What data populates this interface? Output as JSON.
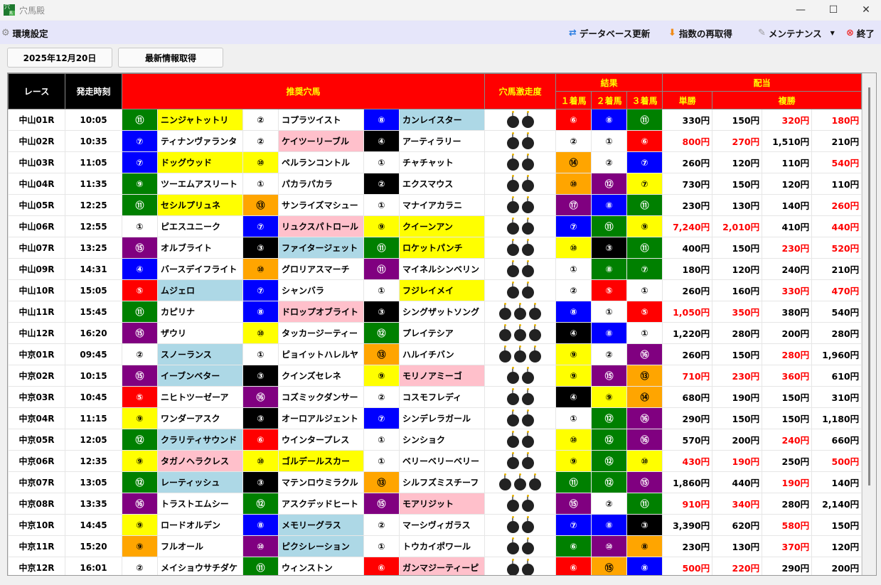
{
  "window": {
    "title": "穴馬殿",
    "min": "—",
    "max": "☐",
    "close": "✕"
  },
  "menu": {
    "settings": "環境設定",
    "db_update": "データベース更新",
    "reindex": "指数の再取得",
    "maintenance": "メンテナンス",
    "quit": "終了"
  },
  "toolbar": {
    "date": "2025年12月20日",
    "fetch": "最新情報取得"
  },
  "headers": {
    "race": "レース",
    "time": "発走時刻",
    "picks": "推奨穴馬",
    "rating": "穴馬激走度",
    "result": "結果",
    "first": "１着馬",
    "second": "２着馬",
    "third": "３着馬",
    "payout": "配当",
    "win": "単勝",
    "place": "複勝"
  },
  "colors": {
    "W": "#ffffff",
    "G": "#008000",
    "B": "#0000ff",
    "K": "#000000",
    "Y": "#ffff00",
    "O": "#ffa500",
    "P": "#800080",
    "R": "#ff0000",
    "L": "#add8e6",
    "N": "#ffc0cb",
    "hot": "#ff0000"
  },
  "rows": [
    {
      "race": "中山01R",
      "time": "10:05",
      "picks": [
        [
          "⑪",
          "G",
          "ニンジャトットリ",
          "Y"
        ],
        [
          "②",
          "W",
          "コプラツイスト",
          "W"
        ],
        [
          "⑧",
          "B",
          "カンレイスター",
          "L"
        ]
      ],
      "bombs": 2,
      "result": [
        [
          "⑥",
          "R"
        ],
        [
          "⑧",
          "B"
        ],
        [
          "⑪",
          "G"
        ]
      ],
      "pay": [
        "330円",
        "150円",
        "320円",
        "180円"
      ],
      "hot": [
        0,
        0,
        1,
        1
      ]
    },
    {
      "race": "中山02R",
      "time": "10:35",
      "picks": [
        [
          "⑦",
          "B",
          "ティナンヴァランタ",
          "W"
        ],
        [
          "②",
          "W",
          "ケイツーリーブル",
          "N"
        ],
        [
          "④",
          "K",
          "アーティラリー",
          "W"
        ]
      ],
      "bombs": 2,
      "result": [
        [
          "②",
          "W"
        ],
        [
          "①",
          "W"
        ],
        [
          "⑥",
          "R"
        ]
      ],
      "pay": [
        "800円",
        "270円",
        "1,510円",
        "210円"
      ],
      "hot": [
        1,
        1,
        0,
        0
      ]
    },
    {
      "race": "中山03R",
      "time": "11:05",
      "picks": [
        [
          "⑦",
          "B",
          "ドッグウッド",
          "Y"
        ],
        [
          "⑩",
          "Y",
          "ペルランコントル",
          "W"
        ],
        [
          "①",
          "W",
          "チャチャット",
          "W"
        ]
      ],
      "bombs": 2,
      "result": [
        [
          "⑭",
          "O"
        ],
        [
          "②",
          "W"
        ],
        [
          "⑦",
          "B"
        ]
      ],
      "pay": [
        "260円",
        "120円",
        "110円",
        "540円"
      ],
      "hot": [
        0,
        0,
        0,
        1
      ]
    },
    {
      "race": "中山04R",
      "time": "11:35",
      "picks": [
        [
          "⑨",
          "G",
          "ツーエムアスリート",
          "W"
        ],
        [
          "①",
          "W",
          "パカラパカラ",
          "W"
        ],
        [
          "②",
          "K",
          "エクスマウス",
          "W"
        ]
      ],
      "bombs": 2,
      "result": [
        [
          "⑩",
          "O"
        ],
        [
          "⑫",
          "P"
        ],
        [
          "⑦",
          "Y"
        ]
      ],
      "pay": [
        "730円",
        "150円",
        "120円",
        "110円"
      ],
      "hot": [
        0,
        0,
        0,
        0
      ]
    },
    {
      "race": "中山05R",
      "time": "12:25",
      "picks": [
        [
          "⑪",
          "G",
          "セシルプリュネ",
          "Y"
        ],
        [
          "⑬",
          "O",
          "サンライズマシュー",
          "W"
        ],
        [
          "①",
          "W",
          "マナイアカラニ",
          "W"
        ]
      ],
      "bombs": 2,
      "result": [
        [
          "⑰",
          "P"
        ],
        [
          "⑧",
          "B"
        ],
        [
          "⑪",
          "G"
        ]
      ],
      "pay": [
        "230円",
        "130円",
        "140円",
        "260円"
      ],
      "hot": [
        0,
        0,
        0,
        1
      ]
    },
    {
      "race": "中山06R",
      "time": "12:55",
      "picks": [
        [
          "①",
          "W",
          "ピエスユニーク",
          "W"
        ],
        [
          "⑦",
          "B",
          "リュクスパトロール",
          "N"
        ],
        [
          "⑨",
          "Y",
          "クイーンアン",
          "Y"
        ]
      ],
      "bombs": 2,
      "result": [
        [
          "⑦",
          "B"
        ],
        [
          "⑪",
          "G"
        ],
        [
          "⑨",
          "Y"
        ]
      ],
      "pay": [
        "7,240円",
        "2,010円",
        "410円",
        "440円"
      ],
      "hot": [
        1,
        1,
        0,
        1
      ]
    },
    {
      "race": "中山07R",
      "time": "13:25",
      "picks": [
        [
          "⑮",
          "P",
          "オルブライト",
          "W"
        ],
        [
          "③",
          "K",
          "ファイタージェット",
          "L"
        ],
        [
          "⑪",
          "G",
          "ロケットパンチ",
          "Y"
        ]
      ],
      "bombs": 2,
      "result": [
        [
          "⑩",
          "Y"
        ],
        [
          "③",
          "K"
        ],
        [
          "⑪",
          "G"
        ]
      ],
      "pay": [
        "400円",
        "150円",
        "230円",
        "520円"
      ],
      "hot": [
        0,
        0,
        1,
        1
      ]
    },
    {
      "race": "中山09R",
      "time": "14:31",
      "picks": [
        [
          "④",
          "B",
          "バースデイフライト",
          "W"
        ],
        [
          "⑩",
          "O",
          "グロリアスマーチ",
          "W"
        ],
        [
          "⑪",
          "P",
          "マイネルシンベリン",
          "W"
        ]
      ],
      "bombs": 2,
      "result": [
        [
          "①",
          "W"
        ],
        [
          "⑧",
          "G"
        ],
        [
          "⑦",
          "G"
        ]
      ],
      "pay": [
        "180円",
        "120円",
        "240円",
        "210円"
      ],
      "hot": [
        0,
        0,
        0,
        0
      ]
    },
    {
      "race": "中山10R",
      "time": "15:05",
      "picks": [
        [
          "⑤",
          "R",
          "ムジェロ",
          "L"
        ],
        [
          "⑦",
          "B",
          "シャンバラ",
          "W"
        ],
        [
          "①",
          "W",
          "フジレイメイ",
          "Y"
        ]
      ],
      "bombs": 2,
      "result": [
        [
          "②",
          "W"
        ],
        [
          "⑤",
          "R"
        ],
        [
          "①",
          "W"
        ]
      ],
      "pay": [
        "260円",
        "160円",
        "330円",
        "470円"
      ],
      "hot": [
        0,
        0,
        1,
        1
      ]
    },
    {
      "race": "中山11R",
      "time": "15:45",
      "picks": [
        [
          "⑪",
          "G",
          "カピリナ",
          "W"
        ],
        [
          "⑧",
          "B",
          "ドロップオブライト",
          "N"
        ],
        [
          "③",
          "K",
          "シングザットソング",
          "W"
        ]
      ],
      "bombs": 3,
      "result": [
        [
          "⑧",
          "B"
        ],
        [
          "①",
          "W"
        ],
        [
          "⑤",
          "R"
        ]
      ],
      "pay": [
        "1,050円",
        "350円",
        "380円",
        "540円"
      ],
      "hot": [
        1,
        1,
        0,
        0
      ]
    },
    {
      "race": "中山12R",
      "time": "16:20",
      "picks": [
        [
          "⑮",
          "P",
          "ザウリ",
          "W"
        ],
        [
          "⑩",
          "Y",
          "タッカージーティー",
          "W"
        ],
        [
          "⑫",
          "G",
          "プレイテシア",
          "W"
        ]
      ],
      "bombs": 3,
      "result": [
        [
          "④",
          "K"
        ],
        [
          "⑧",
          "B"
        ],
        [
          "①",
          "W"
        ]
      ],
      "pay": [
        "1,220円",
        "280円",
        "200円",
        "280円"
      ],
      "hot": [
        0,
        0,
        0,
        0
      ]
    },
    {
      "race": "中京01R",
      "time": "09:45",
      "picks": [
        [
          "②",
          "W",
          "スノーランス",
          "L"
        ],
        [
          "①",
          "W",
          "ピョイットハレルヤ",
          "W"
        ],
        [
          "⑬",
          "O",
          "ハルイチバン",
          "W"
        ]
      ],
      "bombs": 3,
      "result": [
        [
          "⑨",
          "Y"
        ],
        [
          "②",
          "W"
        ],
        [
          "⑯",
          "P"
        ]
      ],
      "pay": [
        "260円",
        "150円",
        "280円",
        "1,960円"
      ],
      "hot": [
        0,
        0,
        1,
        0
      ]
    },
    {
      "race": "中京02R",
      "time": "10:15",
      "picks": [
        [
          "⑮",
          "P",
          "イーブンベター",
          "L"
        ],
        [
          "③",
          "K",
          "クインズセレネ",
          "W"
        ],
        [
          "⑨",
          "Y",
          "モリノアミーゴ",
          "N"
        ]
      ],
      "bombs": 2,
      "result": [
        [
          "⑨",
          "Y"
        ],
        [
          "⑮",
          "P"
        ],
        [
          "⑬",
          "O"
        ]
      ],
      "pay": [
        "710円",
        "230円",
        "360円",
        "610円"
      ],
      "hot": [
        1,
        1,
        1,
        0
      ]
    },
    {
      "race": "中京03R",
      "time": "10:45",
      "picks": [
        [
          "⑤",
          "R",
          "ニヒトツーゼーア",
          "W"
        ],
        [
          "⑯",
          "P",
          "コズミックダンサー",
          "W"
        ],
        [
          "②",
          "W",
          "コスモフレディ",
          "W"
        ]
      ],
      "bombs": 2,
      "result": [
        [
          "④",
          "K"
        ],
        [
          "⑨",
          "Y"
        ],
        [
          "⑭",
          "O"
        ]
      ],
      "pay": [
        "680円",
        "190円",
        "150円",
        "310円"
      ],
      "hot": [
        0,
        0,
        0,
        0
      ]
    },
    {
      "race": "中京04R",
      "time": "11:15",
      "picks": [
        [
          "⑨",
          "Y",
          "ワンダーアスク",
          "W"
        ],
        [
          "③",
          "K",
          "オーロアルジェント",
          "W"
        ],
        [
          "⑦",
          "B",
          "シンデレラガール",
          "W"
        ]
      ],
      "bombs": 2,
      "result": [
        [
          "①",
          "W"
        ],
        [
          "⑫",
          "G"
        ],
        [
          "⑯",
          "P"
        ]
      ],
      "pay": [
        "290円",
        "150円",
        "150円",
        "1,180円"
      ],
      "hot": [
        0,
        0,
        0,
        0
      ]
    },
    {
      "race": "中京05R",
      "time": "12:05",
      "picks": [
        [
          "⑫",
          "G",
          "クラリティサウンド",
          "L"
        ],
        [
          "⑥",
          "R",
          "ウインタープレス",
          "W"
        ],
        [
          "①",
          "W",
          "シンショク",
          "W"
        ]
      ],
      "bombs": 2,
      "result": [
        [
          "⑩",
          "Y"
        ],
        [
          "⑫",
          "G"
        ],
        [
          "⑯",
          "P"
        ]
      ],
      "pay": [
        "570円",
        "200円",
        "240円",
        "660円"
      ],
      "hot": [
        0,
        0,
        1,
        0
      ]
    },
    {
      "race": "中京06R",
      "time": "12:35",
      "picks": [
        [
          "⑨",
          "Y",
          "タガノヘラクレス",
          "N"
        ],
        [
          "⑩",
          "Y",
          "ゴルデールスカー",
          "Y"
        ],
        [
          "①",
          "W",
          "ベリーベリーベリー",
          "W"
        ]
      ],
      "bombs": 2,
      "result": [
        [
          "⑨",
          "Y"
        ],
        [
          "⑫",
          "G"
        ],
        [
          "⑩",
          "Y"
        ]
      ],
      "pay": [
        "430円",
        "190円",
        "250円",
        "500円"
      ],
      "hot": [
        1,
        1,
        0,
        1
      ]
    },
    {
      "race": "中京07R",
      "time": "13:05",
      "picks": [
        [
          "⑫",
          "G",
          "レーティッシュ",
          "L"
        ],
        [
          "③",
          "K",
          "マテンロウミラクル",
          "W"
        ],
        [
          "⑬",
          "O",
          "シルフズミスチーフ",
          "W"
        ]
      ],
      "bombs": 3,
      "result": [
        [
          "⑪",
          "G"
        ],
        [
          "⑫",
          "G"
        ],
        [
          "⑮",
          "P"
        ]
      ],
      "pay": [
        "1,860円",
        "440円",
        "190円",
        "140円"
      ],
      "hot": [
        0,
        0,
        1,
        0
      ]
    },
    {
      "race": "中京08R",
      "time": "13:35",
      "picks": [
        [
          "⑯",
          "P",
          "トラストエムシー",
          "W"
        ],
        [
          "⑫",
          "G",
          "アスクデッドヒート",
          "W"
        ],
        [
          "⑮",
          "P",
          "モアリジット",
          "N"
        ]
      ],
      "bombs": 2,
      "result": [
        [
          "⑮",
          "P"
        ],
        [
          "②",
          "W"
        ],
        [
          "⑪",
          "G"
        ]
      ],
      "pay": [
        "910円",
        "340円",
        "280円",
        "2,140円"
      ],
      "hot": [
        1,
        1,
        0,
        0
      ]
    },
    {
      "race": "中京10R",
      "time": "14:45",
      "picks": [
        [
          "⑨",
          "Y",
          "ロードオルデン",
          "W"
        ],
        [
          "⑧",
          "B",
          "メモリーグラス",
          "L"
        ],
        [
          "②",
          "W",
          "マーシヴィガラス",
          "W"
        ]
      ],
      "bombs": 2,
      "result": [
        [
          "⑦",
          "B"
        ],
        [
          "⑧",
          "B"
        ],
        [
          "③",
          "K"
        ]
      ],
      "pay": [
        "3,390円",
        "620円",
        "580円",
        "150円"
      ],
      "hot": [
        0,
        0,
        1,
        0
      ]
    },
    {
      "race": "中京11R",
      "time": "15:20",
      "picks": [
        [
          "⑨",
          "O",
          "フルオール",
          "W"
        ],
        [
          "⑩",
          "P",
          "ピクシレーション",
          "L"
        ],
        [
          "①",
          "W",
          "トウカイポワール",
          "W"
        ]
      ],
      "bombs": 2,
      "result": [
        [
          "⑥",
          "G"
        ],
        [
          "⑩",
          "P"
        ],
        [
          "⑧",
          "O"
        ]
      ],
      "pay": [
        "230円",
        "130円",
        "370円",
        "120円"
      ],
      "hot": [
        0,
        0,
        1,
        0
      ]
    },
    {
      "race": "中京12R",
      "time": "16:01",
      "picks": [
        [
          "②",
          "W",
          "メイショウサチダケ",
          "W"
        ],
        [
          "⑪",
          "G",
          "ウィンストン",
          "W"
        ],
        [
          "⑥",
          "R",
          "ガンマジーティーピ",
          "N"
        ]
      ],
      "bombs": 2,
      "result": [
        [
          "⑥",
          "R"
        ],
        [
          "⑮",
          "O"
        ],
        [
          "⑧",
          "B"
        ]
      ],
      "pay": [
        "500円",
        "220円",
        "290円",
        "200円"
      ],
      "hot": [
        1,
        1,
        0,
        0
      ]
    }
  ]
}
